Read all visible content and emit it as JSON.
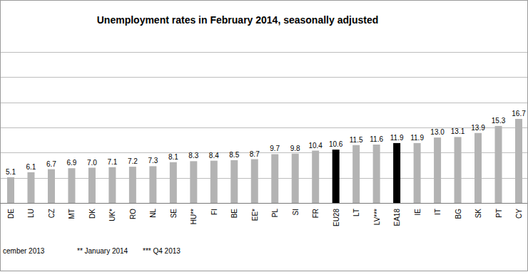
{
  "chart_data": {
    "type": "bar",
    "title": "Unemployment rates in February 2014, seasonally adjusted",
    "categories": [
      "DE",
      "LU",
      "CZ",
      "MT",
      "DK",
      "UK*",
      "RO",
      "NL",
      "SE",
      "HU**",
      "FI",
      "BE",
      "EE*",
      "PL",
      "SI",
      "FR",
      "EU28",
      "LT",
      "LV***",
      "EA18",
      "IE",
      "IT",
      "BG",
      "SK",
      "PT",
      "CY"
    ],
    "values": [
      5.1,
      6.1,
      6.7,
      6.9,
      7.0,
      7.1,
      7.2,
      7.3,
      8.1,
      8.3,
      8.4,
      8.5,
      8.7,
      9.7,
      9.8,
      10.4,
      10.6,
      11.5,
      11.6,
      11.9,
      11.9,
      13.0,
      13.1,
      13.9,
      15.3,
      16.7
    ],
    "value_labels": [
      "5.1",
      "6.1",
      "6.7",
      "6.9",
      "7.0",
      "7.1",
      "7.2",
      "7.3",
      "8.1",
      "8.3",
      "8.4",
      "8.5",
      "8.7",
      "9.7",
      "9.8",
      "10.4",
      "10.6",
      "11.5",
      "11.6",
      "11.9",
      "11.9",
      "13.0",
      "13.1",
      "13.9",
      "15.3",
      "16.7"
    ],
    "colors": [
      "#b3b3b3",
      "#b3b3b3",
      "#b3b3b3",
      "#b3b3b3",
      "#b3b3b3",
      "#b3b3b3",
      "#b3b3b3",
      "#b3b3b3",
      "#b3b3b3",
      "#b3b3b3",
      "#b3b3b3",
      "#b3b3b3",
      "#b3b3b3",
      "#b3b3b3",
      "#b3b3b3",
      "#b3b3b3",
      "#000000",
      "#b3b3b3",
      "#b3b3b3",
      "#000000",
      "#b3b3b3",
      "#b3b3b3",
      "#b3b3b3",
      "#b3b3b3",
      "#b3b3b3",
      "#b3b3b3"
    ],
    "ylim": [
      0,
      30
    ],
    "yticks": [
      0,
      5,
      10,
      15,
      20,
      25,
      30
    ],
    "grid": true,
    "data_labels": true,
    "tick_labels": "x",
    "annotations": [
      "cember 2013",
      "** January 2014",
      "*** Q4 2013"
    ]
  }
}
